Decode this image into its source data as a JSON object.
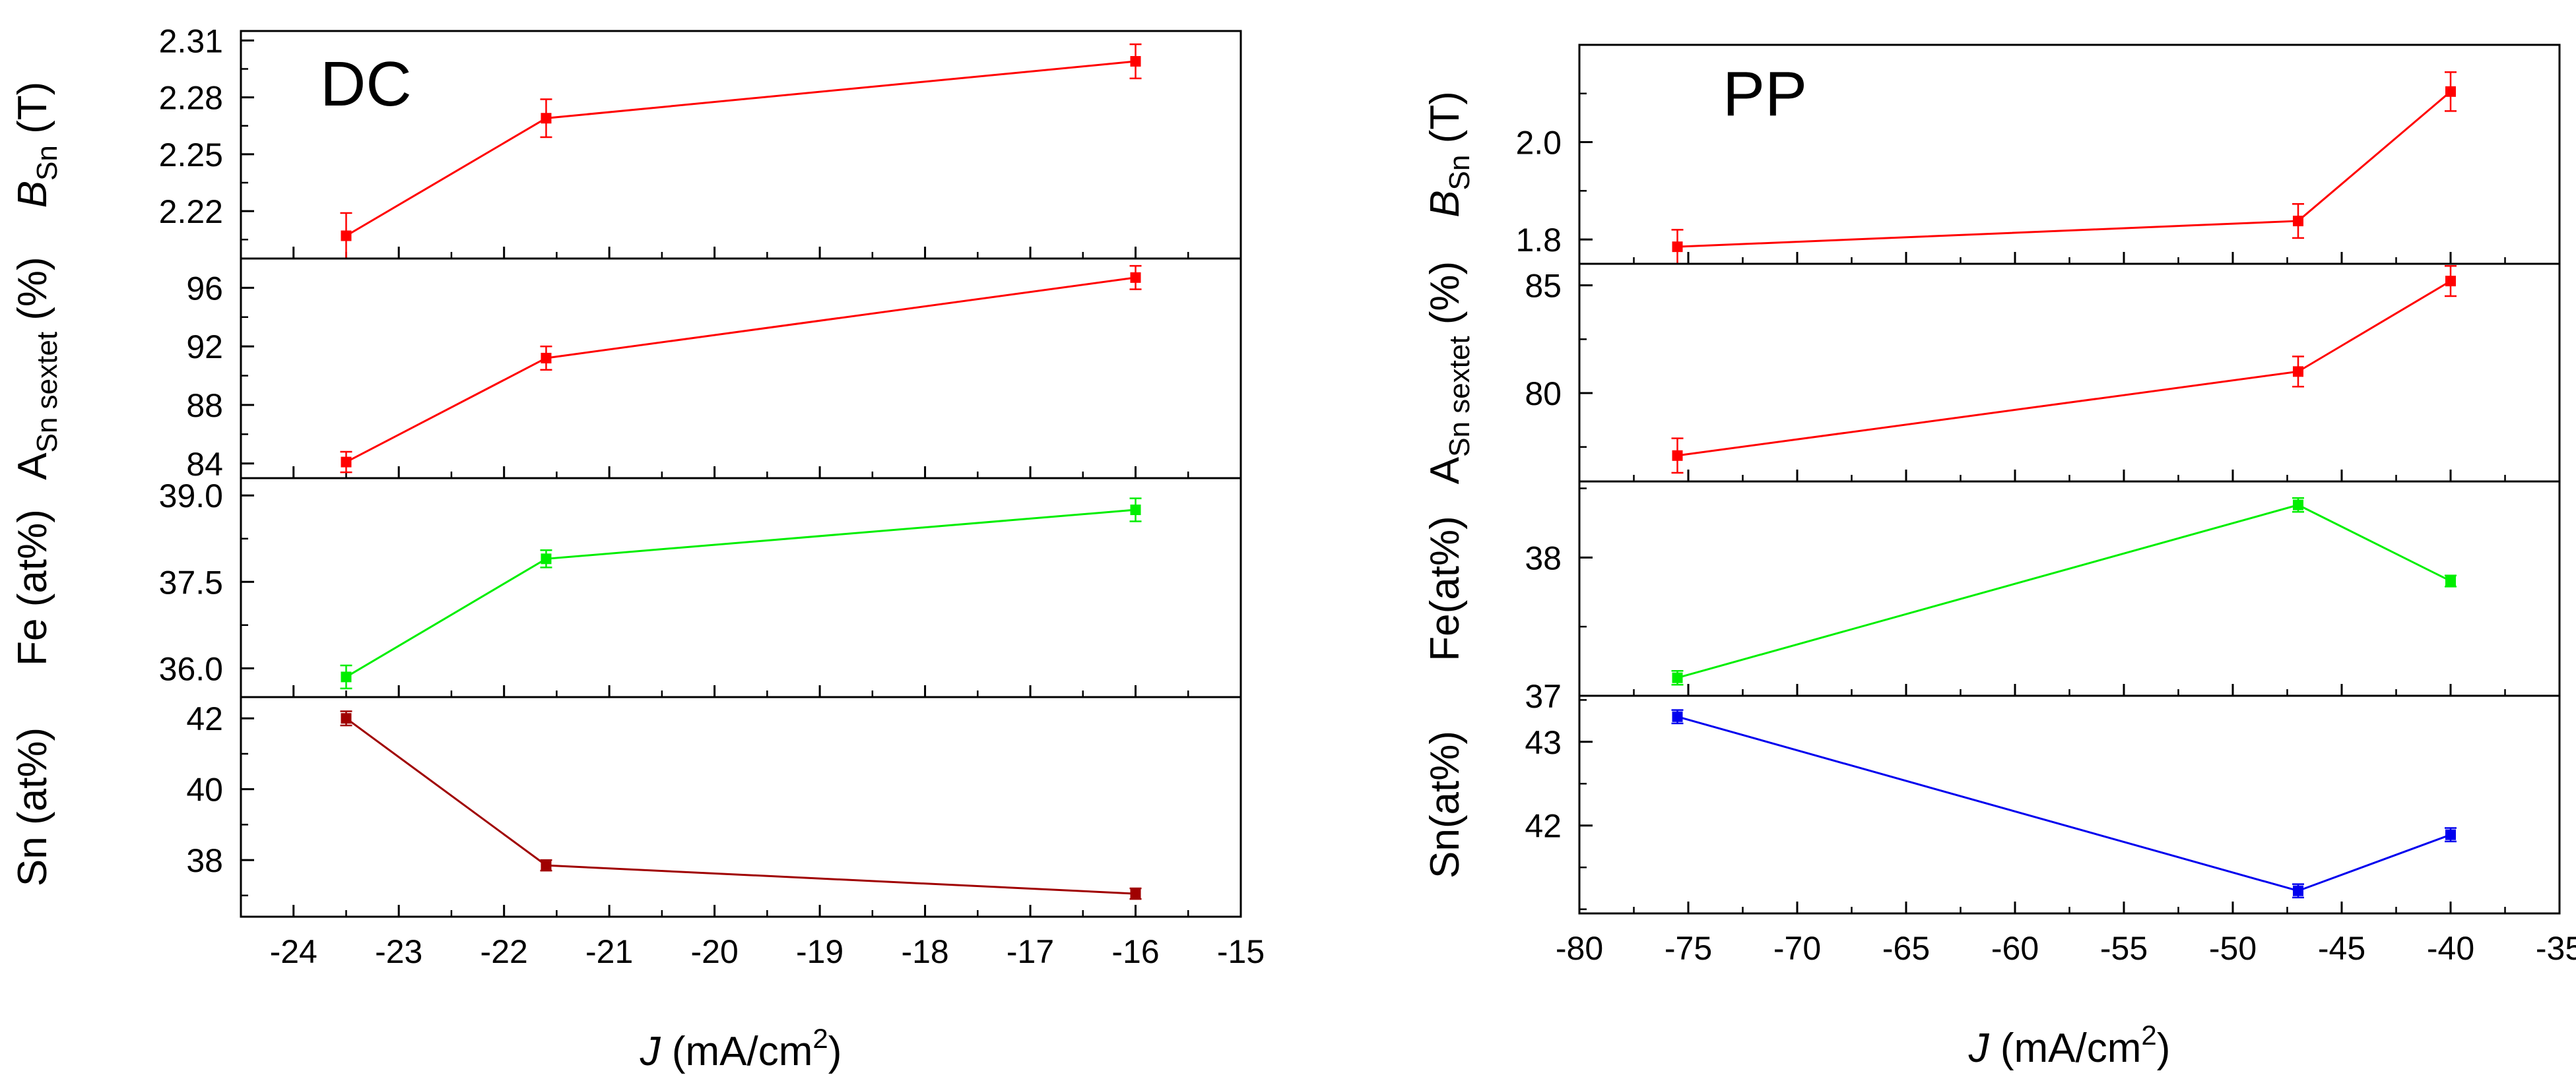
{
  "chart_data": [
    {
      "type": "line",
      "panel_label": "DC",
      "xlabel": {
        "var": "J",
        "unit_prefix": " (mA/cm",
        "unit_sup": "2",
        "unit_suffix": ")"
      },
      "xlim": [
        -24.5,
        -15
      ],
      "xticks": [
        -24,
        -23,
        -22,
        -21,
        -20,
        -19,
        -18,
        -17,
        -16,
        -15
      ],
      "xticklabels": [
        "-24",
        "-23",
        "-22",
        "-21",
        "-20",
        "-19",
        "-18",
        "-17",
        "-16",
        "-15"
      ],
      "x": [
        -23.5,
        -21.6,
        -16
      ],
      "series": [
        {
          "name": "B_Sn",
          "ylabel": {
            "main": "B",
            "sub": "Sn",
            "suffix": " (T)"
          },
          "color": "#ff0000",
          "values": [
            2.207,
            2.269,
            2.299
          ],
          "errors": [
            0.012,
            0.01,
            0.009
          ],
          "ylim": [
            2.195,
            2.315
          ],
          "yticks": [
            2.22,
            2.25,
            2.28,
            2.31
          ],
          "yticklabels": [
            "2.22",
            "2.25",
            "2.28",
            "2.31"
          ]
        },
        {
          "name": "A_Sn sextet",
          "ylabel": {
            "main": "A",
            "sub": "Sn sextet",
            "suffix": " (%)"
          },
          "color": "#ff0000",
          "values": [
            84.1,
            91.2,
            96.7
          ],
          "errors": [
            0.7,
            0.8,
            0.8
          ],
          "ylim": [
            83,
            98
          ],
          "yticks": [
            84,
            88,
            92,
            96
          ],
          "yticklabels": [
            "84",
            "88",
            "92",
            "96"
          ]
        },
        {
          "name": "Fe",
          "ylabel": {
            "main": "Fe (at%)",
            "sub": "",
            "suffix": ""
          },
          "color": "#00ee00",
          "values": [
            35.85,
            37.9,
            38.75
          ],
          "errors": [
            0.2,
            0.15,
            0.2
          ],
          "ylim": [
            35.5,
            39.3
          ],
          "yticks": [
            36.0,
            37.5,
            39.0
          ],
          "yticklabels": [
            "36.0",
            "37.5",
            "39.0"
          ]
        },
        {
          "name": "Sn",
          "ylabel": {
            "main": "Sn (at%)",
            "sub": "",
            "suffix": ""
          },
          "color": "#a00000",
          "values": [
            42.0,
            37.85,
            37.05
          ],
          "errors": [
            0.2,
            0.15,
            0.15
          ],
          "ylim": [
            36.4,
            42.6
          ],
          "yticks": [
            38,
            40,
            42
          ],
          "yticklabels": [
            "38",
            "40",
            "42"
          ]
        }
      ]
    },
    {
      "type": "line",
      "panel_label": "PP",
      "xlabel": {
        "var": "J",
        "unit_prefix": " (mA/cm",
        "unit_sup": "2",
        "unit_suffix": ")"
      },
      "xlim": [
        -80,
        -35
      ],
      "xticks": [
        -80,
        -75,
        -70,
        -65,
        -60,
        -55,
        -50,
        -45,
        -40,
        -35
      ],
      "xticklabels": [
        "-80",
        "-75",
        "-70",
        "-65",
        "-60",
        "-55",
        "-50",
        "-45",
        "-40",
        "-35"
      ],
      "x": [
        -75.5,
        -47,
        -40
      ],
      "series": [
        {
          "name": "B_Sn",
          "ylabel": {
            "main": "B",
            "sub": "Sn",
            "suffix": " (T)"
          },
          "color": "#ff0000",
          "values": [
            1.785,
            1.838,
            2.104
          ],
          "errors": [
            0.035,
            0.035,
            0.04
          ],
          "ylim": [
            1.75,
            2.2
          ],
          "yticks": [
            1.8,
            2.0
          ],
          "yticklabels": [
            "1.8",
            "2.0"
          ]
        },
        {
          "name": "A_Sn sextet",
          "ylabel": {
            "main": "A",
            "sub": "Sn sextet",
            "suffix": " (%)"
          },
          "color": "#ff0000",
          "values": [
            77.1,
            81.0,
            85.2
          ],
          "errors": [
            0.8,
            0.7,
            0.7
          ],
          "ylim": [
            75.9,
            86
          ],
          "yticks": [
            80,
            85
          ],
          "yticklabels": [
            "80",
            "85"
          ]
        },
        {
          "name": "Fe",
          "ylabel": {
            "main": "Fe(at%)",
            "sub": "",
            "suffix": ""
          },
          "color": "#00ee00",
          "values": [
            37.13,
            38.38,
            37.83
          ],
          "errors": [
            0.05,
            0.05,
            0.04
          ],
          "ylim": [
            37,
            38.55
          ],
          "yticks": [
            37,
            38
          ],
          "yticklabels": [
            "37",
            "38"
          ]
        },
        {
          "name": "Sn",
          "ylabel": {
            "main": "Sn(at%)",
            "sub": "",
            "suffix": ""
          },
          "color": "#0000ee",
          "values": [
            43.3,
            41.22,
            41.89
          ],
          "errors": [
            0.08,
            0.08,
            0.08
          ],
          "ylim": [
            40.95,
            43.55
          ],
          "yticks": [
            42,
            43
          ],
          "yticklabels": [
            "42",
            "43"
          ]
        }
      ]
    }
  ]
}
